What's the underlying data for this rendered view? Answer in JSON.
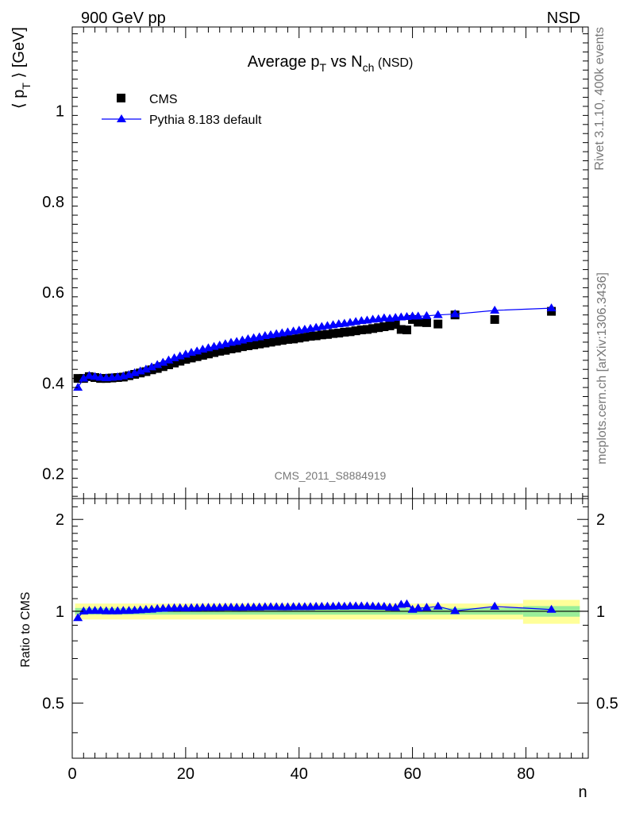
{
  "header": {
    "left": "900 GeV pp",
    "right": "NSD"
  },
  "side_labels": {
    "rivet": "Rivet 3.1.10,  400k events",
    "mcplots": "mcplots.cern.ch [arXiv:1306.3436]"
  },
  "watermark": "CMS_2011_S8884919",
  "colors": {
    "data": "#000000",
    "mc": "#0000ff",
    "band_inner": "#99ee99",
    "band_outer": "#ffff99"
  },
  "chart_data": [
    {
      "type": "scatter",
      "title": "Average p_T vs N_ch (NSD)",
      "title_parts": {
        "main": "Average p",
        "sub1": "T",
        "mid": " vs N",
        "sub2": "ch",
        "tail": " (NSD)"
      },
      "ylabel": "⟨ p_T ⟩ [GeV]",
      "ylabel_parts": {
        "open": "⟨ p",
        "sub": "T",
        "close": " ⟩ [GeV]"
      },
      "xlim": [
        0,
        91
      ],
      "ylim": [
        0.145,
        1.185
      ],
      "yticks": [
        0.2,
        0.4,
        0.6,
        0.8,
        1.0
      ],
      "ytick_labels": [
        "0.2",
        "0.4",
        "0.6",
        "0.8",
        "1"
      ],
      "legend_position": "top-left",
      "series": [
        {
          "name": "CMS",
          "marker": "square",
          "x": [
            1,
            2,
            3,
            4,
            5,
            6,
            7,
            8,
            9,
            10,
            11,
            12,
            13,
            14,
            15,
            16,
            17,
            18,
            19,
            20,
            21,
            22,
            23,
            24,
            25,
            26,
            27,
            28,
            29,
            30,
            31,
            32,
            33,
            34,
            35,
            36,
            37,
            38,
            39,
            40,
            41,
            42,
            43,
            44,
            45,
            46,
            47,
            48,
            49,
            50,
            51,
            52,
            53,
            54,
            55,
            56,
            57,
            58,
            59,
            60,
            61,
            62.5,
            64.5,
            67.5,
            74.5,
            84.5
          ],
          "y": [
            0.41,
            0.41,
            0.414,
            0.412,
            0.41,
            0.41,
            0.411,
            0.412,
            0.413,
            0.416,
            0.419,
            0.422,
            0.425,
            0.429,
            0.432,
            0.436,
            0.44,
            0.444,
            0.448,
            0.452,
            0.455,
            0.458,
            0.461,
            0.464,
            0.467,
            0.47,
            0.472,
            0.475,
            0.477,
            0.48,
            0.482,
            0.484,
            0.486,
            0.488,
            0.49,
            0.492,
            0.494,
            0.496,
            0.497,
            0.499,
            0.501,
            0.503,
            0.504,
            0.506,
            0.507,
            0.509,
            0.51,
            0.512,
            0.513,
            0.515,
            0.517,
            0.518,
            0.52,
            0.522,
            0.524,
            0.526,
            0.529,
            0.518,
            0.517,
            0.54,
            0.534,
            0.533,
            0.53,
            0.55,
            0.54,
            0.558
          ]
        },
        {
          "name": "Pythia 8.183 default",
          "marker": "triangle",
          "x": [
            1,
            2,
            3,
            4,
            5,
            6,
            7,
            8,
            9,
            10,
            11,
            12,
            13,
            14,
            15,
            16,
            17,
            18,
            19,
            20,
            21,
            22,
            23,
            24,
            25,
            26,
            27,
            28,
            29,
            30,
            31,
            32,
            33,
            34,
            35,
            36,
            37,
            38,
            39,
            40,
            41,
            42,
            43,
            44,
            45,
            46,
            47,
            48,
            49,
            50,
            51,
            52,
            53,
            54,
            55,
            56,
            57,
            58,
            59,
            60,
            61,
            62.5,
            64.5,
            67.5,
            74.5,
            84.5
          ],
          "y": [
            0.39,
            0.41,
            0.416,
            0.414,
            0.412,
            0.411,
            0.412,
            0.413,
            0.415,
            0.418,
            0.422,
            0.426,
            0.43,
            0.435,
            0.44,
            0.445,
            0.45,
            0.455,
            0.459,
            0.463,
            0.467,
            0.47,
            0.474,
            0.477,
            0.48,
            0.483,
            0.486,
            0.489,
            0.491,
            0.494,
            0.497,
            0.499,
            0.501,
            0.504,
            0.506,
            0.508,
            0.51,
            0.512,
            0.514,
            0.516,
            0.518,
            0.52,
            0.522,
            0.524,
            0.526,
            0.528,
            0.53,
            0.531,
            0.533,
            0.535,
            0.537,
            0.538,
            0.54,
            0.541,
            0.543,
            0.542,
            0.544,
            0.545,
            0.546,
            0.547,
            0.547,
            0.548,
            0.55,
            0.552,
            0.56,
            0.565
          ]
        }
      ]
    },
    {
      "type": "line",
      "ylabel": "Ratio to CMS",
      "xlabel": "n",
      "xlim": [
        0,
        91
      ],
      "ylim": [
        0.33,
        2.34
      ],
      "xticks": [
        0,
        20,
        40,
        60,
        80
      ],
      "xtick_labels": [
        "0",
        "20",
        "40",
        "60",
        "80"
      ],
      "yticks": [
        0.5,
        1,
        2
      ],
      "ytick_labels": [
        "0.5",
        "1",
        "2"
      ],
      "reference": 1.0,
      "bands": [
        {
          "x": [
            0.5,
            79.5
          ],
          "inner": [
            0.975,
            1.025
          ],
          "outer": [
            0.94,
            1.06
          ]
        },
        {
          "x": [
            79.5,
            89.5
          ],
          "inner": [
            0.96,
            1.04
          ],
          "outer": [
            0.91,
            1.09
          ]
        }
      ],
      "series": [
        {
          "name": "Pythia 8.183 default",
          "x": [
            1,
            2,
            3,
            4,
            5,
            6,
            7,
            8,
            9,
            10,
            11,
            12,
            13,
            14,
            15,
            16,
            17,
            18,
            19,
            20,
            21,
            22,
            23,
            24,
            25,
            26,
            27,
            28,
            29,
            30,
            31,
            32,
            33,
            34,
            35,
            36,
            37,
            38,
            39,
            40,
            41,
            42,
            43,
            44,
            45,
            46,
            47,
            48,
            49,
            50,
            51,
            52,
            53,
            54,
            55,
            56,
            57,
            58,
            59,
            60,
            61,
            62.5,
            64.5,
            67.5,
            74.5,
            84.5
          ],
          "y": [
            0.951,
            1.0,
            1.005,
            1.005,
            1.005,
            1.002,
            1.002,
            1.002,
            1.005,
            1.005,
            1.007,
            1.009,
            1.012,
            1.014,
            1.019,
            1.021,
            1.023,
            1.025,
            1.025,
            1.024,
            1.026,
            1.026,
            1.028,
            1.028,
            1.028,
            1.028,
            1.03,
            1.03,
            1.029,
            1.029,
            1.031,
            1.031,
            1.031,
            1.033,
            1.033,
            1.033,
            1.032,
            1.032,
            1.034,
            1.034,
            1.034,
            1.034,
            1.036,
            1.036,
            1.037,
            1.037,
            1.039,
            1.037,
            1.039,
            1.039,
            1.039,
            1.039,
            1.038,
            1.036,
            1.036,
            1.03,
            1.028,
            1.052,
            1.056,
            1.013,
            1.024,
            1.028,
            1.038,
            1.003,
            1.037,
            1.013
          ]
        }
      ]
    }
  ]
}
